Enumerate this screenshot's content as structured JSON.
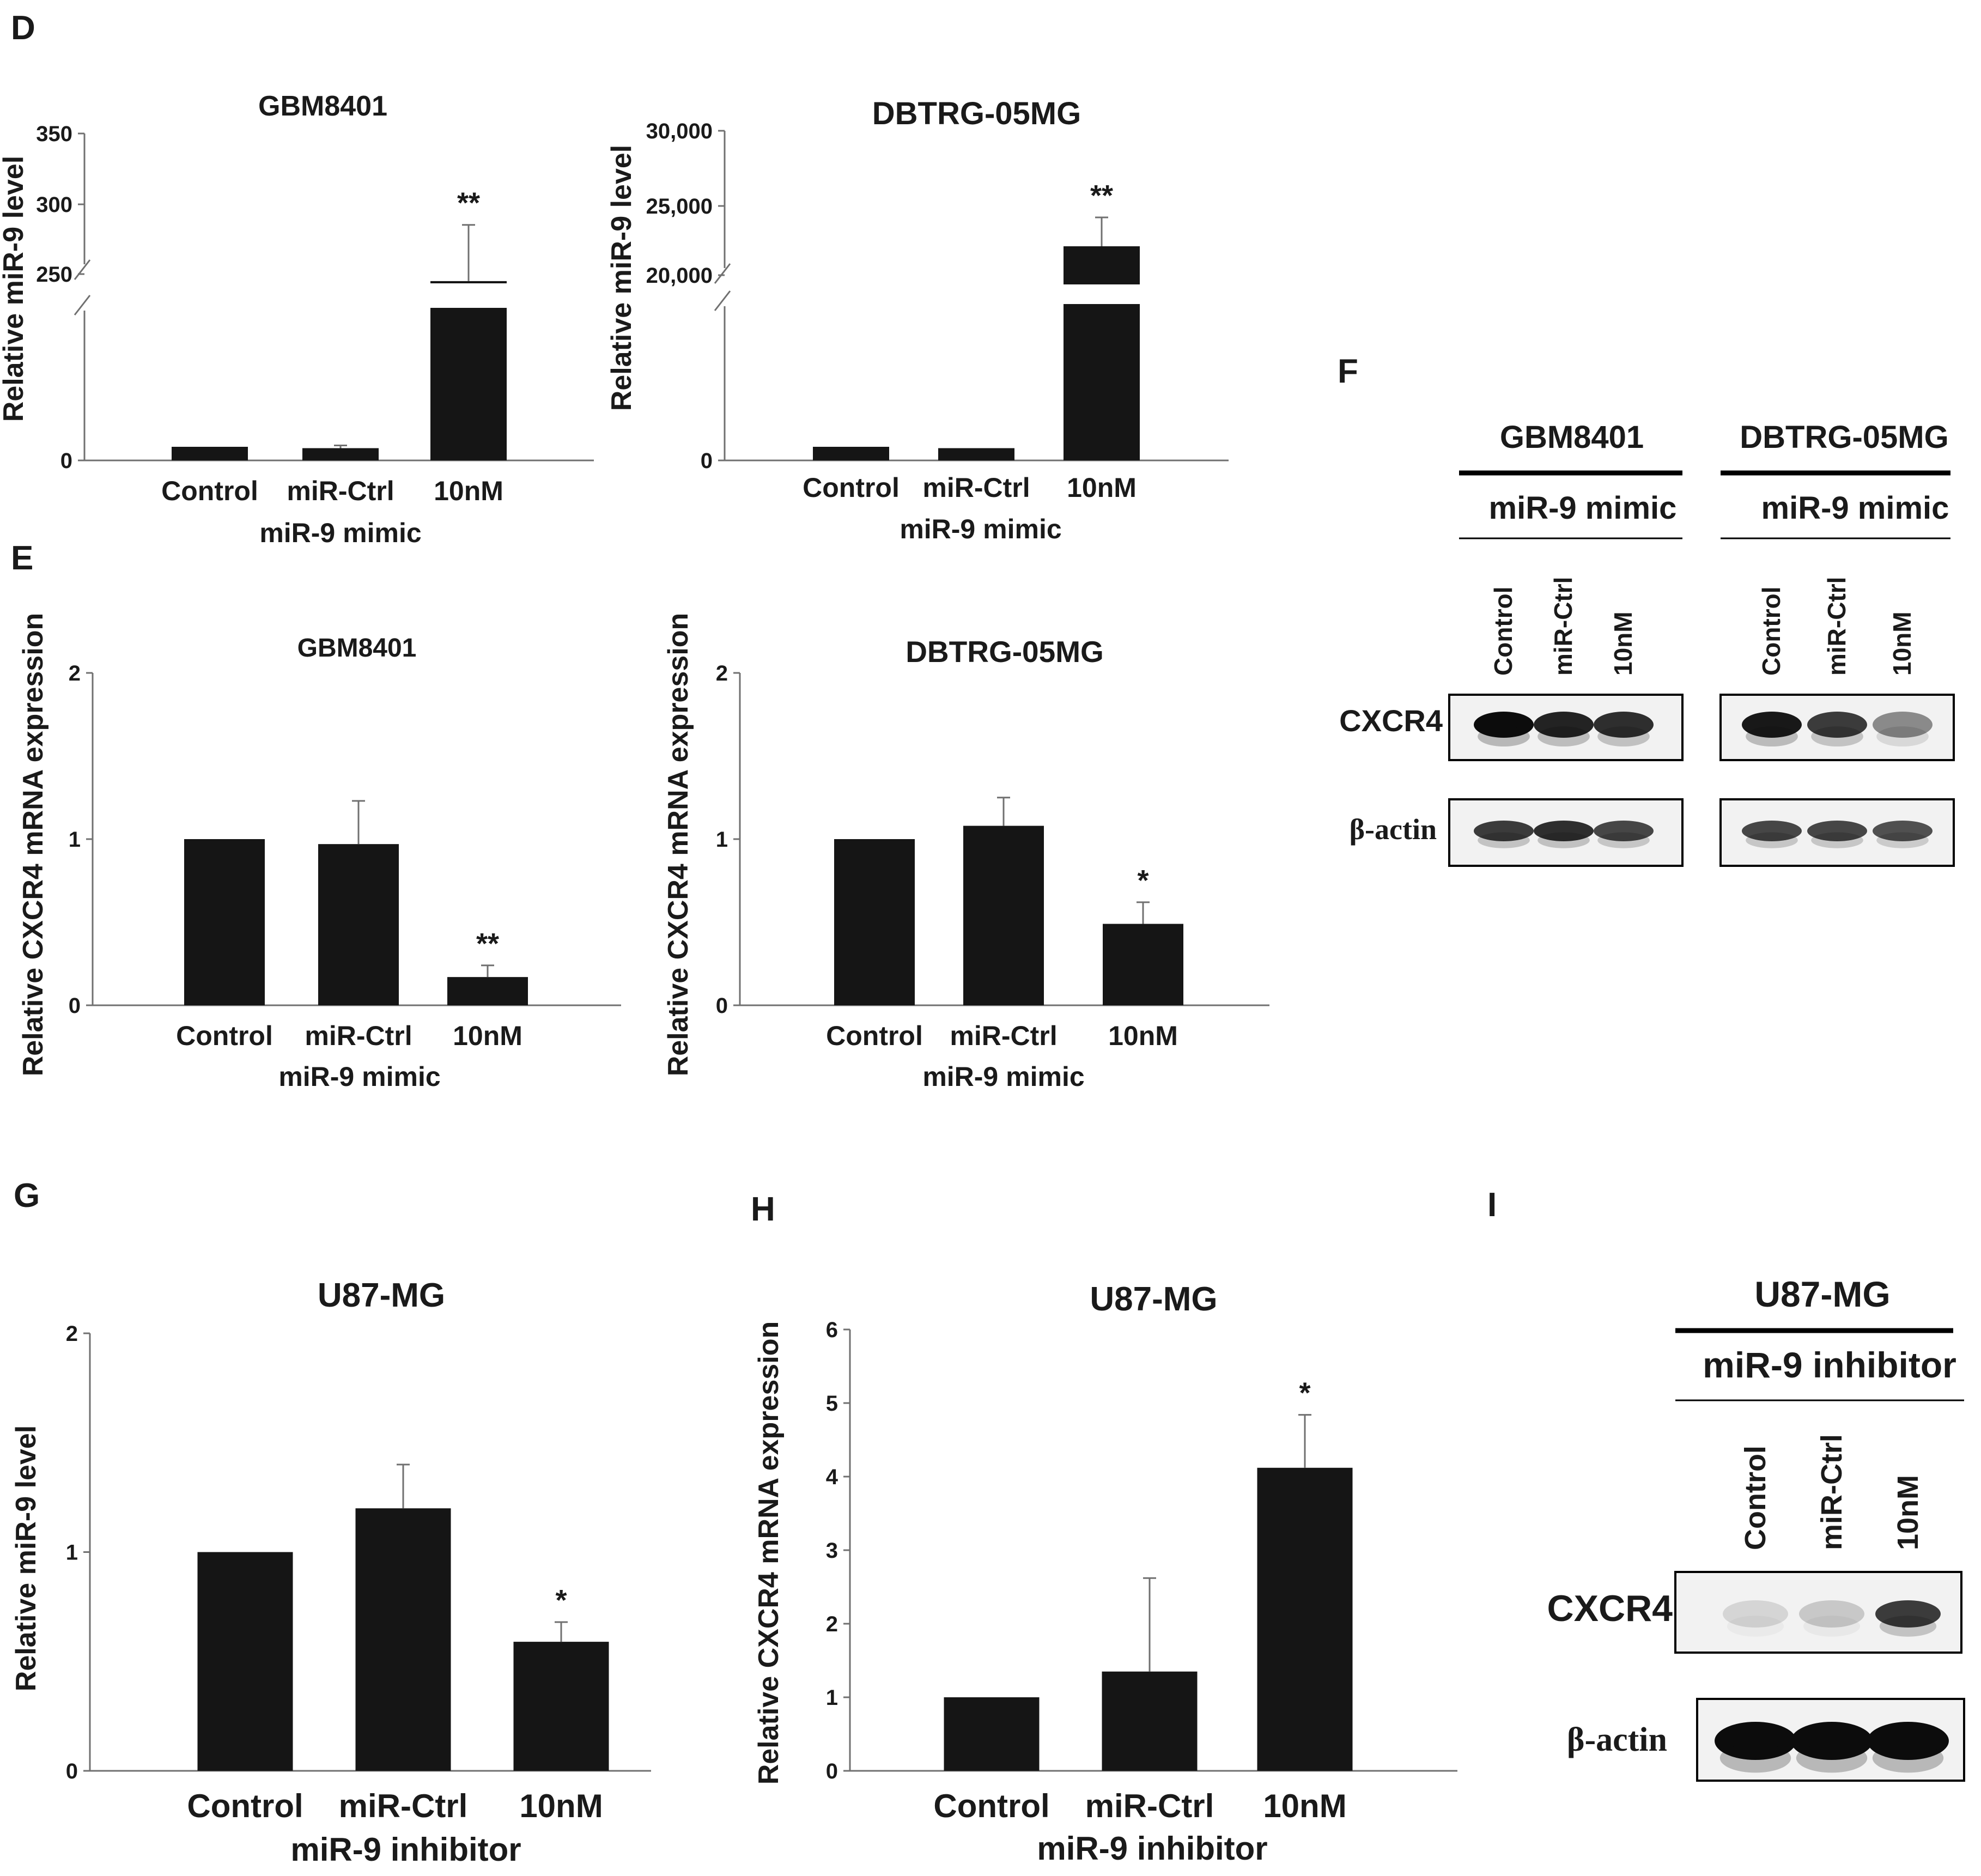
{
  "panel_labels": [
    "D",
    "E",
    "F",
    "G",
    "H",
    "I"
  ],
  "colors": {
    "bar": "#151515",
    "axis": "#707070",
    "text": "#1a1a1a",
    "band": "#0c0c0c",
    "membrane": "#f2f2f2"
  },
  "chart_data": [
    {
      "id": "D1",
      "type": "bar",
      "title": "GBM8401",
      "categories": [
        "Control",
        "miR-Ctrl",
        "10nM"
      ],
      "group_label": "miR-9 mimic",
      "ylabel": "Relative miR-9 level",
      "y_ticks": [
        "0",
        "250",
        "300",
        "350"
      ],
      "broken_axis": true,
      "values": [
        1,
        0.9,
        245
      ],
      "errors": [
        0,
        0.2,
        40
      ],
      "significance": [
        "",
        "",
        "**"
      ]
    },
    {
      "id": "D2",
      "type": "bar",
      "title": "DBTRG-05MG",
      "categories": [
        "Control",
        "miR-Ctrl",
        "10nM"
      ],
      "group_label": "miR-9 mimic",
      "ylabel": "Relative miR-9 level",
      "y_ticks": [
        "0",
        "20,000",
        "25,000",
        "30,000"
      ],
      "broken_axis": true,
      "values": [
        1,
        0.9,
        22000
      ],
      "errors": [
        0,
        0,
        2000
      ],
      "significance": [
        "",
        "",
        "**"
      ]
    },
    {
      "id": "E1",
      "type": "bar",
      "title": "GBM8401",
      "categories": [
        "Control",
        "miR-Ctrl",
        "10nM"
      ],
      "group_label": "miR-9 mimic",
      "ylabel": "Relative CXCR4 mRNA expression",
      "y_ticks": [
        "0",
        "1",
        "2"
      ],
      "ylim": [
        0,
        2
      ],
      "values": [
        1.0,
        0.97,
        0.17
      ],
      "errors": [
        0,
        0.26,
        0.07
      ],
      "significance": [
        "",
        "",
        "**"
      ]
    },
    {
      "id": "E2",
      "type": "bar",
      "title": "DBTRG-05MG",
      "categories": [
        "Control",
        "miR-Ctrl",
        "10nM"
      ],
      "group_label": "miR-9 mimic",
      "ylabel": "Relative CXCR4 mRNA expression",
      "y_ticks": [
        "0",
        "1",
        "2"
      ],
      "ylim": [
        0,
        2
      ],
      "values": [
        1.0,
        1.08,
        0.49
      ],
      "errors": [
        0,
        0.17,
        0.13
      ],
      "significance": [
        "",
        "",
        "*"
      ]
    },
    {
      "id": "G",
      "type": "bar",
      "title": "U87-MG",
      "categories": [
        "Control",
        "miR-Ctrl",
        "10nM"
      ],
      "group_label": "miR-9 inhibitor",
      "ylabel": "Relative miR-9 level",
      "y_ticks": [
        "0",
        "1",
        "2"
      ],
      "ylim": [
        0,
        2
      ],
      "values": [
        1.0,
        1.2,
        0.59
      ],
      "errors": [
        0,
        0.2,
        0.09
      ],
      "significance": [
        "",
        "",
        "*"
      ]
    },
    {
      "id": "H",
      "type": "bar",
      "title": "U87-MG",
      "categories": [
        "Control",
        "miR-Ctrl",
        "10nM"
      ],
      "group_label": "miR-9 inhibitor",
      "ylabel": "Relative CXCR4 mRNA expression",
      "y_ticks": [
        "0",
        "1",
        "2",
        "3",
        "4",
        "5",
        "6"
      ],
      "ylim": [
        0,
        6
      ],
      "values": [
        1.0,
        1.35,
        4.12
      ],
      "errors": [
        0,
        1.27,
        0.72
      ],
      "significance": [
        "",
        "",
        "*"
      ]
    }
  ],
  "blots": {
    "F": {
      "groups": [
        {
          "cell_line": "GBM8401",
          "treatment": "miR-9 mimic",
          "lanes": [
            "Control",
            "miR-Ctrl",
            "10nM"
          ],
          "band_intensity": {
            "CXCR4": [
              1.0,
              0.9,
              0.85
            ],
            "beta_actin": [
              0.8,
              0.85,
              0.75
            ]
          }
        },
        {
          "cell_line": "DBTRG-05MG",
          "treatment": "miR-9 mimic",
          "lanes": [
            "Control",
            "miR-Ctrl",
            "10nM"
          ],
          "band_intensity": {
            "CXCR4": [
              0.95,
              0.8,
              0.45
            ],
            "beta_actin": [
              0.75,
              0.75,
              0.7
            ]
          }
        }
      ],
      "row_labels": [
        "CXCR4",
        "β-actin"
      ]
    },
    "I": {
      "cell_line": "U87-MG",
      "treatment": "miR-9 inhibitor",
      "lanes": [
        "Control",
        "miR-Ctrl",
        "10nM"
      ],
      "band_intensity": {
        "CXCR4": [
          0.12,
          0.18,
          0.8
        ],
        "beta_actin": [
          1.0,
          1.0,
          1.0
        ]
      },
      "row_labels": [
        "CXCR4",
        "β-actin"
      ]
    }
  }
}
